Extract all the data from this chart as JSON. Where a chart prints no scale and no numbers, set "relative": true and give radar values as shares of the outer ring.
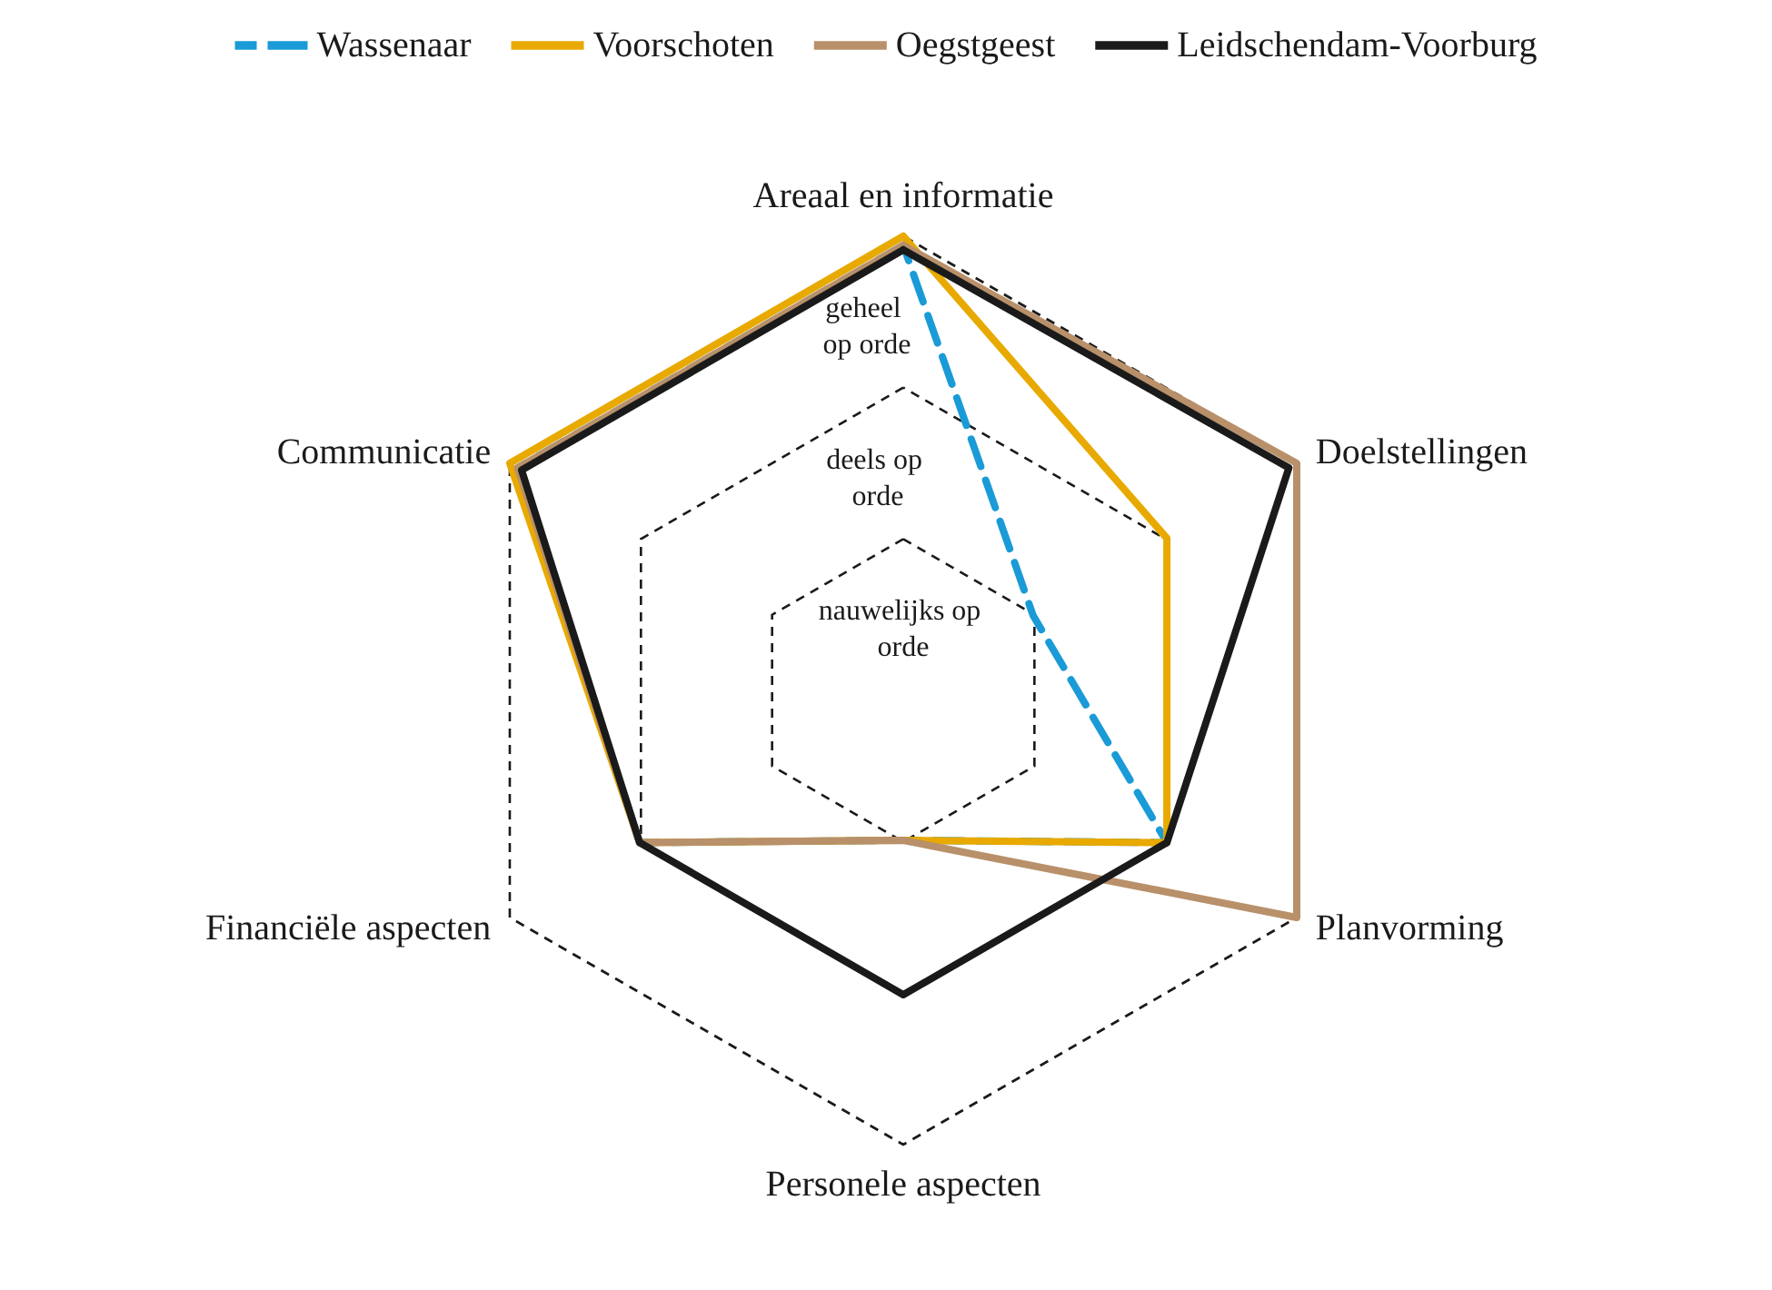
{
  "chart_data": {
    "type": "radar",
    "relative": true,
    "categories": [
      "Areaal en informatie",
      "Doelstellingen",
      "Planvorming",
      "Personele aspecten",
      "Financiële aspecten",
      "Communicatie"
    ],
    "annotations": [
      "nauwelijks op orde",
      "deels op orde",
      "geheel op orde"
    ],
    "series": [
      {
        "name": "Wassenaar",
        "color": "#1a9bd7",
        "line_style": "dashed",
        "values": [
          0.98,
          0.33,
          0.67,
          0.33,
          0.67,
          0.98
        ]
      },
      {
        "name": "Voorschoten",
        "color": "#e8a900",
        "values": [
          1,
          0.67,
          0.67,
          0.33,
          0.67,
          1
        ]
      },
      {
        "name": "Oegstgeest",
        "color": "#b8906a",
        "values": [
          0.98,
          1,
          1,
          0.33,
          0.67,
          0.98
        ]
      },
      {
        "name": "Leidschendam-Voorburg",
        "color": "#1a1a1a",
        "values": [
          0.97,
          0.98,
          0.67,
          0.67,
          0.67,
          0.97
        ]
      }
    ],
    "legend": "top",
    "marker": "none"
  }
}
